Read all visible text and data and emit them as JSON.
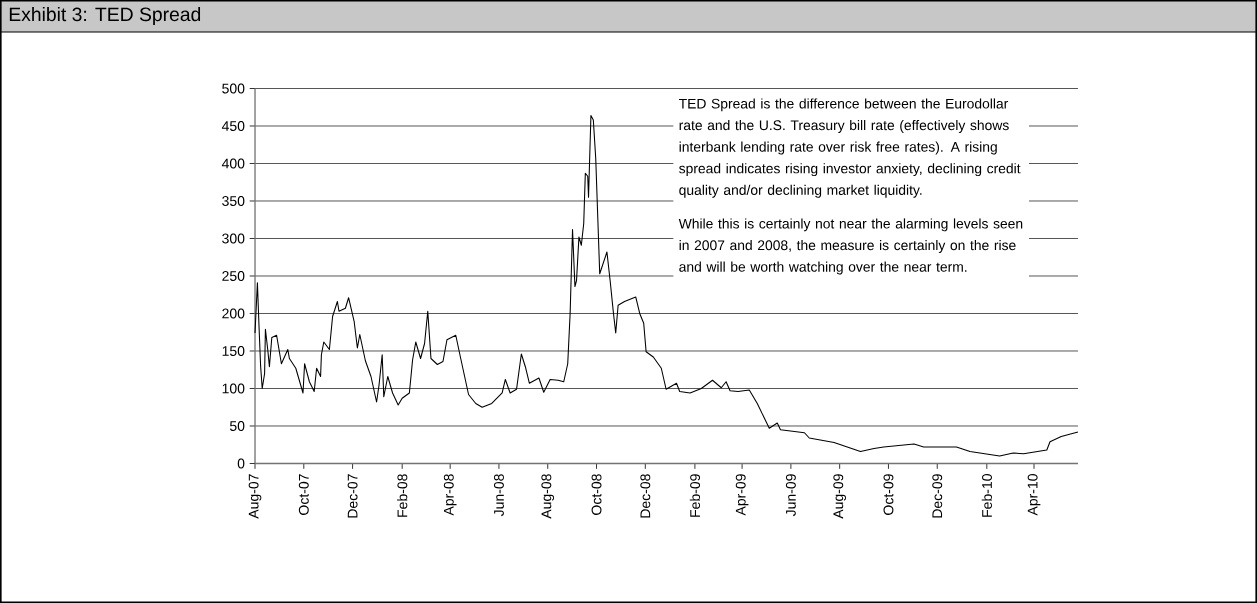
{
  "chart_data": {
    "type": "line",
    "title": "Exhibit 3: TED Spread",
    "x": [
      "2007-08-01",
      "2007-08-04",
      "2007-08-06",
      "2007-08-08",
      "2007-08-10",
      "2007-08-13",
      "2007-08-14",
      "2007-08-17",
      "2007-08-19",
      "2007-08-22",
      "2007-08-28",
      "2007-09-03",
      "2007-09-11",
      "2007-09-13",
      "2007-09-21",
      "2007-09-30",
      "2007-10-02",
      "2007-10-08",
      "2007-10-14",
      "2007-10-17",
      "2007-10-22",
      "2007-10-23",
      "2007-10-26",
      "2007-11-02",
      "2007-11-06",
      "2007-11-12",
      "2007-11-14",
      "2007-11-22",
      "2007-11-26",
      "2007-12-03",
      "2007-12-07",
      "2007-12-10",
      "2007-12-17",
      "2007-12-24",
      "2007-12-31",
      "2008-01-03",
      "2008-01-07",
      "2008-01-09",
      "2008-01-14",
      "2008-01-20",
      "2008-01-27",
      "2008-02-01",
      "2008-02-10",
      "2008-02-14",
      "2008-02-18",
      "2008-02-24",
      "2008-02-29",
      "2008-03-04",
      "2008-03-08",
      "2008-03-16",
      "2008-03-23",
      "2008-03-28",
      "2008-04-08",
      "2008-04-14",
      "2008-04-24",
      "2008-05-03",
      "2008-05-11",
      "2008-05-23",
      "2008-06-05",
      "2008-06-09",
      "2008-06-15",
      "2008-06-23",
      "2008-06-29",
      "2008-07-04",
      "2008-07-09",
      "2008-07-21",
      "2008-07-27",
      "2008-08-04",
      "2008-08-14",
      "2008-08-21",
      "2008-08-26",
      "2008-08-29",
      "2008-09-01",
      "2008-09-04",
      "2008-09-06",
      "2008-09-09",
      "2008-09-12",
      "2008-09-15",
      "2008-09-17",
      "2008-09-20",
      "2008-09-21",
      "2008-09-24",
      "2008-09-27",
      "2008-09-30",
      "2008-10-05",
      "2008-10-14",
      "2008-10-18",
      "2008-10-22",
      "2008-10-25",
      "2008-10-28",
      "2008-11-05",
      "2008-11-19",
      "2008-11-24",
      "2008-11-29",
      "2008-12-02",
      "2008-12-11",
      "2008-12-21",
      "2008-12-27",
      "2009-01-09",
      "2009-01-13",
      "2009-01-26",
      "2009-02-09",
      "2009-02-23",
      "2009-03-06",
      "2009-03-12",
      "2009-03-17",
      "2009-03-27",
      "2009-04-10",
      "2009-04-20",
      "2009-05-05",
      "2009-05-15",
      "2009-05-19",
      "2009-06-18",
      "2009-06-24",
      "2009-07-25",
      "2009-08-27",
      "2009-09-13",
      "2009-09-25",
      "2009-11-02",
      "2009-11-14",
      "2009-12-25",
      "2010-01-11",
      "2010-02-17",
      "2010-03-06",
      "2010-03-19",
      "2010-04-17",
      "2010-04-21",
      "2010-05-05",
      "2010-05-26"
    ],
    "series": [
      {
        "color": "#000000",
        "values": [
          174,
          241,
          183,
          130,
          100,
          120,
          179,
          151,
          129,
          168,
          171,
          133,
          152,
          140,
          127,
          94,
          133,
          109,
          96,
          127,
          116,
          145,
          162,
          152,
          196,
          216,
          203,
          207,
          221,
          189,
          154,
          172,
          137,
          116,
          82,
          104,
          145,
          89,
          116,
          94,
          78,
          87,
          94,
          138,
          162,
          140,
          160,
          203,
          140,
          132,
          136,
          165,
          171,
          141,
          92,
          80,
          75,
          80,
          94,
          112,
          94,
          99,
          146,
          129,
          107,
          114,
          95,
          112,
          111,
          109,
          133,
          200,
          312,
          236,
          244,
          302,
          291,
          320,
          387,
          383,
          355,
          464,
          458,
          407,
          253,
          282,
          244,
          202,
          174,
          211,
          216,
          222,
          200,
          187,
          149,
          142,
          127,
          99,
          107,
          96,
          94,
          100,
          111,
          101,
          109,
          97,
          96,
          98,
          80,
          47,
          54,
          45,
          41,
          34,
          28,
          16,
          20,
          22,
          26,
          22,
          22,
          16,
          10,
          14,
          13,
          18,
          29,
          36,
          42
        ]
      }
    ],
    "xlim": [
      "2007-08-01",
      "2010-05-26"
    ],
    "xticks": [
      {
        "value": "2007-08-01",
        "label": "Aug-07"
      },
      {
        "value": "2007-10-01",
        "label": "Oct-07"
      },
      {
        "value": "2007-12-01",
        "label": "Dec-07"
      },
      {
        "value": "2008-02-01",
        "label": "Feb-08"
      },
      {
        "value": "2008-04-01",
        "label": "Apr-08"
      },
      {
        "value": "2008-06-01",
        "label": "Jun-08"
      },
      {
        "value": "2008-08-01",
        "label": "Aug-08"
      },
      {
        "value": "2008-10-01",
        "label": "Oct-08"
      },
      {
        "value": "2008-12-01",
        "label": "Dec-08"
      },
      {
        "value": "2009-02-01",
        "label": "Feb-09"
      },
      {
        "value": "2009-04-01",
        "label": "Apr-09"
      },
      {
        "value": "2009-06-01",
        "label": "Jun-09"
      },
      {
        "value": "2009-08-01",
        "label": "Aug-09"
      },
      {
        "value": "2009-10-01",
        "label": "Oct-09"
      },
      {
        "value": "2009-12-01",
        "label": "Dec-09"
      },
      {
        "value": "2010-02-01",
        "label": "Feb-10"
      },
      {
        "value": "2010-04-01",
        "label": "Apr-10"
      }
    ],
    "ylim": [
      0,
      500
    ],
    "yticks": [
      0,
      50,
      100,
      150,
      200,
      250,
      300,
      350,
      400,
      450,
      500
    ],
    "grid": "y",
    "marker": "none",
    "line_style": "solid",
    "annotations": [
      "TED Spread is the difference between the Eurodollar rate and the U.S. Treasury bill rate (effectively shows interbank lending rate over risk free rates). A rising spread indicates rising investor anxiety, declining credit quality and/or declining market liquidity.",
      "While this is certainly not near the alarming levels seen in 2007 and 2008, the measure is certainly on the rise and will be worth watching over the near term."
    ]
  }
}
